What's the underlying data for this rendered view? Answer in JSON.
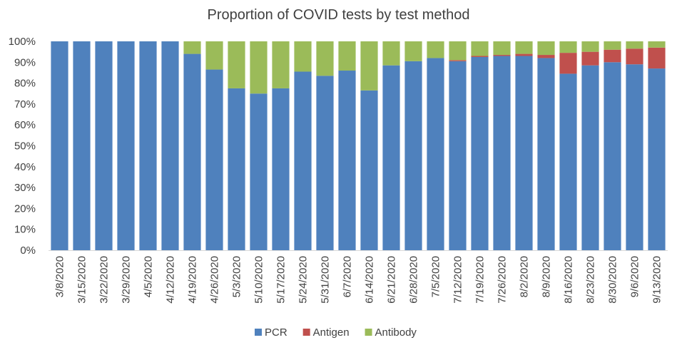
{
  "chart_data": {
    "type": "bar",
    "stacked": true,
    "title": "Proportion of COVID tests by test method",
    "categories": [
      "3/8/2020",
      "3/15/2020",
      "3/22/2020",
      "3/29/2020",
      "4/5/2020",
      "4/12/2020",
      "4/19/2020",
      "4/26/2020",
      "5/3/2020",
      "5/10/2020",
      "5/17/2020",
      "5/24/2020",
      "5/31/2020",
      "6/7/2020",
      "6/14/2020",
      "6/21/2020",
      "6/28/2020",
      "7/5/2020",
      "7/12/2020",
      "7/19/2020",
      "7/26/2020",
      "8/2/2020",
      "8/9/2020",
      "8/16/2020",
      "8/23/2020",
      "8/30/2020",
      "9/6/2020",
      "9/13/2020"
    ],
    "series": [
      {
        "name": "PCR",
        "color": "#4f81bd",
        "values": [
          100,
          100,
          100,
          100,
          100,
          100,
          94,
          86.5,
          77.5,
          75,
          77.5,
          85.5,
          83.5,
          86,
          76.5,
          88.5,
          90.5,
          92,
          90.5,
          92.5,
          93,
          93,
          92,
          84.5,
          88.5,
          90,
          89,
          87
        ]
      },
      {
        "name": "Antigen",
        "color": "#c0504d",
        "values": [
          0,
          0,
          0,
          0,
          0,
          0,
          0,
          0,
          0,
          0,
          0,
          0,
          0,
          0,
          0,
          0,
          0,
          0,
          0.5,
          0.5,
          0.5,
          1,
          1.5,
          10,
          6.5,
          6,
          7.5,
          10
        ]
      },
      {
        "name": "Antibody",
        "color": "#9bbb59",
        "values": [
          0,
          0,
          0,
          0,
          0,
          0,
          6,
          13.5,
          22.5,
          25,
          22.5,
          14.5,
          16.5,
          14,
          23.5,
          11.5,
          9.5,
          8,
          9,
          7,
          6.5,
          6,
          6.5,
          5.5,
          5,
          4,
          3.5,
          3
        ]
      }
    ],
    "ylim": [
      0,
      100
    ],
    "yticks": [
      "0%",
      "10%",
      "20%",
      "30%",
      "40%",
      "50%",
      "60%",
      "70%",
      "80%",
      "90%",
      "100%"
    ],
    "legend_position": "bottom",
    "grid": false
  }
}
